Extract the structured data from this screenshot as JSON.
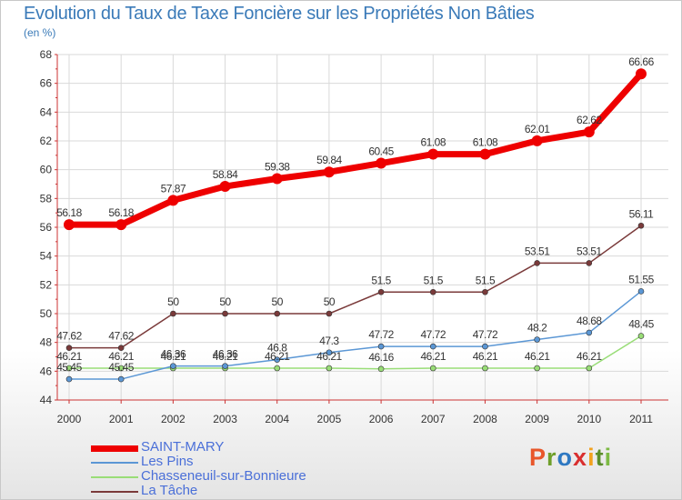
{
  "title": "Evolution du Taux de Taxe Foncière sur les Propriétés Non Bâties",
  "unit_label": "(en %)",
  "logo_text": "Proxiti",
  "colors": {
    "axis": "#cc3333",
    "grid": "#d9d9d9",
    "text": "#333333",
    "legend_text": "#4a6fd8"
  },
  "chart_data": {
    "type": "line",
    "x": [
      "2000",
      "2001",
      "2002",
      "2003",
      "2004",
      "2005",
      "2006",
      "2007",
      "2008",
      "2009",
      "2010",
      "2011"
    ],
    "ylim": [
      44,
      68
    ],
    "yticks": [
      44,
      46,
      48,
      50,
      52,
      54,
      56,
      58,
      60,
      62,
      64,
      66,
      68
    ],
    "grid": true,
    "legend_position": "bottom-left",
    "series": [
      {
        "name": "SAINT-MARY",
        "color": "#ee0000",
        "values": [
          56.18,
          56.18,
          57.87,
          58.84,
          59.38,
          59.84,
          60.45,
          61.08,
          61.08,
          62.01,
          62.62,
          66.66
        ],
        "labels": [
          "56.18",
          "56.18",
          "57.87",
          "58.84",
          "59.38",
          "59.84",
          "60.45",
          "61.08",
          "61.08",
          "62.01",
          "62.62",
          "66.66"
        ]
      },
      {
        "name": "Les Pins",
        "color": "#5b97d5",
        "values": [
          45.45,
          45.45,
          46.36,
          46.36,
          46.8,
          47.3,
          47.72,
          47.72,
          47.72,
          48.2,
          48.68,
          51.55
        ],
        "labels": [
          "45.45",
          "45.45",
          "46.36",
          "46.36",
          "46.8",
          "47.3",
          "47.72",
          "47.72",
          "47.72",
          "48.2",
          "48.68",
          "51.55"
        ]
      },
      {
        "name": "Chasseneuil-sur-Bonnieure",
        "color": "#99dd77",
        "values": [
          46.21,
          46.21,
          46.21,
          46.21,
          46.21,
          46.21,
          46.16,
          46.21,
          46.21,
          46.21,
          46.21,
          48.45
        ],
        "labels": [
          "46.21",
          "46.21",
          "46.21",
          "46.21",
          "46.21",
          "46.21",
          "46.16",
          "46.21",
          "46.21",
          "46.21",
          "46.21",
          "48.45"
        ]
      },
      {
        "name": "La Tâche",
        "color": "#7a3a3a",
        "values": [
          47.62,
          47.62,
          50,
          50,
          50,
          50,
          51.5,
          51.5,
          51.5,
          53.51,
          53.51,
          56.11
        ],
        "labels": [
          "47.62",
          "47.62",
          "50",
          "50",
          "50",
          "50",
          "51.5",
          "51.5",
          "51.5",
          "53.51",
          "53.51",
          "56.11"
        ]
      }
    ]
  }
}
